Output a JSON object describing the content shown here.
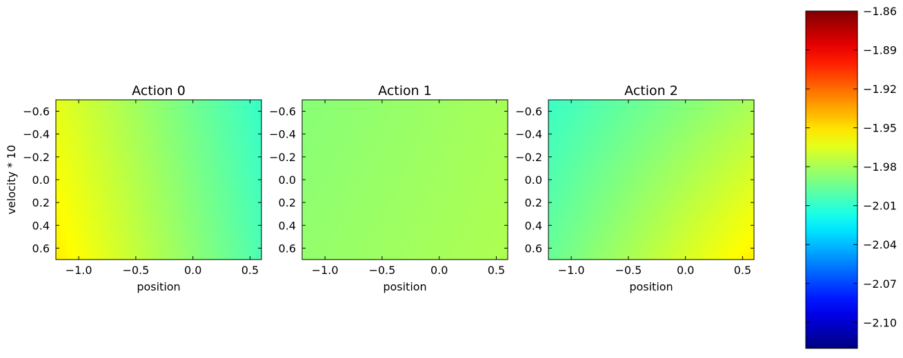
{
  "chart_data": [
    {
      "type": "heatmap",
      "title": "Action 0",
      "xlabel": "position",
      "ylabel": "velocity * 10",
      "xlim": [
        -1.2,
        0.6
      ],
      "ylim": [
        0.7,
        -0.7
      ],
      "xticks": [
        -1.0,
        -0.5,
        0.0,
        0.5
      ],
      "xtick_labels": [
        "−1.0",
        "−0.5",
        "0.0",
        "0.5"
      ],
      "yticks": [
        -0.6,
        -0.4,
        -0.2,
        0.0,
        0.2,
        0.4,
        0.6
      ],
      "ytick_labels": [
        "−0.6",
        "−0.4",
        "−0.2",
        "0.0",
        "0.2",
        "0.4",
        "0.6"
      ],
      "value_corners": {
        "top_left": -1.964,
        "top_right": -2.009,
        "bottom_left": -1.953,
        "bottom_right": -2.003
      }
    },
    {
      "type": "heatmap",
      "title": "Action 1",
      "xlabel": "position",
      "ylabel": "",
      "xlim": [
        -1.2,
        0.6
      ],
      "ylim": [
        0.7,
        -0.7
      ],
      "xticks": [
        -1.0,
        -0.5,
        0.0,
        0.5
      ],
      "xtick_labels": [
        "−1.0",
        "−0.5",
        "0.0",
        "0.5"
      ],
      "yticks": [
        -0.6,
        -0.4,
        -0.2,
        0.0,
        0.2,
        0.4,
        0.6
      ],
      "ytick_labels": [
        "−0.6",
        "−0.4",
        "−0.2",
        "0.0",
        "0.2",
        "0.4",
        "0.6"
      ],
      "value_corners": {
        "top_left": -1.988,
        "top_right": -1.98,
        "bottom_left": -1.985,
        "bottom_right": -1.978
      }
    },
    {
      "type": "heatmap",
      "title": "Action 2",
      "xlabel": "position",
      "ylabel": "",
      "xlim": [
        -1.2,
        0.6
      ],
      "ylim": [
        0.7,
        -0.7
      ],
      "xticks": [
        -1.0,
        -0.5,
        0.0,
        0.5
      ],
      "xtick_labels": [
        "−1.0",
        "−0.5",
        "0.0",
        "0.5"
      ],
      "yticks": [
        -0.6,
        -0.4,
        -0.2,
        0.0,
        0.2,
        0.4,
        0.6
      ],
      "ytick_labels": [
        "−0.6",
        "−0.4",
        "−0.2",
        "0.0",
        "0.2",
        "0.4",
        "0.6"
      ],
      "value_corners": {
        "top_left": -2.008,
        "top_right": -1.98,
        "bottom_left": -1.996,
        "bottom_right": -1.953
      }
    }
  ],
  "colorbar": {
    "colormap": "jet",
    "range": [
      -2.12,
      -1.86
    ],
    "ticks": [
      -1.86,
      -1.89,
      -1.92,
      -1.95,
      -1.98,
      -2.01,
      -2.04,
      -2.07,
      -2.1
    ],
    "tick_labels": [
      "−1.86",
      "−1.89",
      "−1.92",
      "−1.95",
      "−1.98",
      "−2.01",
      "−2.04",
      "−2.07",
      "−2.10"
    ],
    "colormap_stops": [
      "#000080",
      "#0000ff",
      "#00ffff",
      "#ffff00",
      "#ff0000",
      "#800000"
    ]
  }
}
